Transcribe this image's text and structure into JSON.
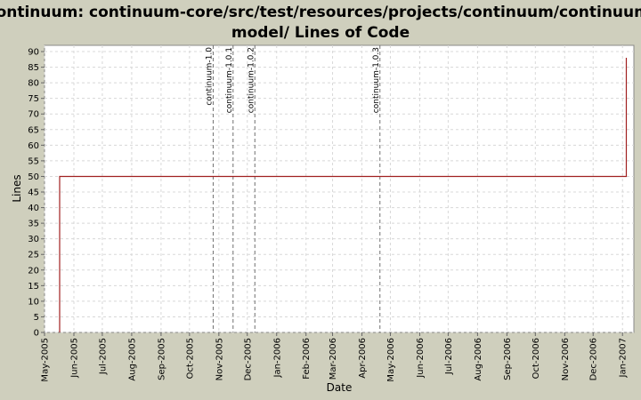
{
  "chart_data": {
    "type": "line",
    "title_line1": "Continuum: continuum-core/src/test/resources/projects/continuum/continuum-",
    "title_line2": "model/ Lines of Code",
    "xlabel": "Date",
    "ylabel": "Lines",
    "ylim": [
      0,
      92
    ],
    "yticks": [
      0,
      5,
      10,
      15,
      20,
      25,
      30,
      35,
      40,
      45,
      50,
      55,
      60,
      65,
      70,
      75,
      80,
      85,
      90
    ],
    "x_range": [
      "2005-05-01",
      "2007-01-13"
    ],
    "x_ticks": [
      {
        "date": "2005-05-01",
        "label": "May-2005"
      },
      {
        "date": "2005-06-01",
        "label": "Jun-2005"
      },
      {
        "date": "2005-07-01",
        "label": "Jul-2005"
      },
      {
        "date": "2005-08-01",
        "label": "Aug-2005"
      },
      {
        "date": "2005-09-01",
        "label": "Sep-2005"
      },
      {
        "date": "2005-10-01",
        "label": "Oct-2005"
      },
      {
        "date": "2005-11-01",
        "label": "Nov-2005"
      },
      {
        "date": "2005-12-01",
        "label": "Dec-2005"
      },
      {
        "date": "2006-01-01",
        "label": "Jan-2006"
      },
      {
        "date": "2006-02-01",
        "label": "Feb-2006"
      },
      {
        "date": "2006-03-01",
        "label": "Mar-2006"
      },
      {
        "date": "2006-04-01",
        "label": "Apr-2006"
      },
      {
        "date": "2006-05-01",
        "label": "May-2006"
      },
      {
        "date": "2006-06-01",
        "label": "Jun-2006"
      },
      {
        "date": "2006-07-01",
        "label": "Jul-2006"
      },
      {
        "date": "2006-08-01",
        "label": "Aug-2006"
      },
      {
        "date": "2006-09-01",
        "label": "Sep-2006"
      },
      {
        "date": "2006-10-01",
        "label": "Oct-2006"
      },
      {
        "date": "2006-11-01",
        "label": "Nov-2006"
      },
      {
        "date": "2006-12-01",
        "label": "Dec-2006"
      },
      {
        "date": "2007-01-01",
        "label": "Jan-2007"
      }
    ],
    "series": [
      {
        "color": "#a02020",
        "points": [
          {
            "x": "2005-05-17",
            "y": 0
          },
          {
            "x": "2005-05-17",
            "y": 50
          },
          {
            "x": "2007-01-05",
            "y": 50
          },
          {
            "x": "2007-01-05",
            "y": 88
          }
        ]
      }
    ],
    "markers": [
      {
        "date": "2005-10-26",
        "label": "continuum-1.0"
      },
      {
        "date": "2005-11-16",
        "label": "continuum-1.0.1"
      },
      {
        "date": "2005-12-09",
        "label": "continuum-1.0.2"
      },
      {
        "date": "2006-04-20",
        "label": "continuum-1.0.3"
      }
    ],
    "grid": true,
    "colors": {
      "background": "#cfcfbd",
      "plot_background": "#ffffff",
      "grid": "#d8d8d8",
      "marker_line": "#707070",
      "series": "#a02020"
    }
  }
}
